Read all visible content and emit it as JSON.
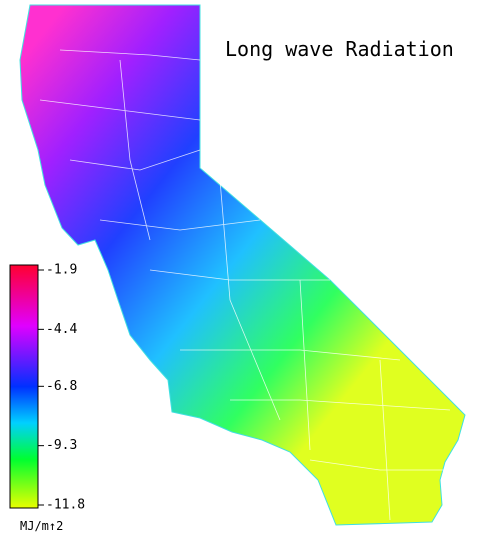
{
  "map": {
    "title": "Long wave Radiation",
    "colorbar": {
      "ticks": [
        -1.9,
        -4.4,
        -6.8,
        -9.3,
        -11.8
      ],
      "unit": "MJ/m↑2"
    }
  }
}
